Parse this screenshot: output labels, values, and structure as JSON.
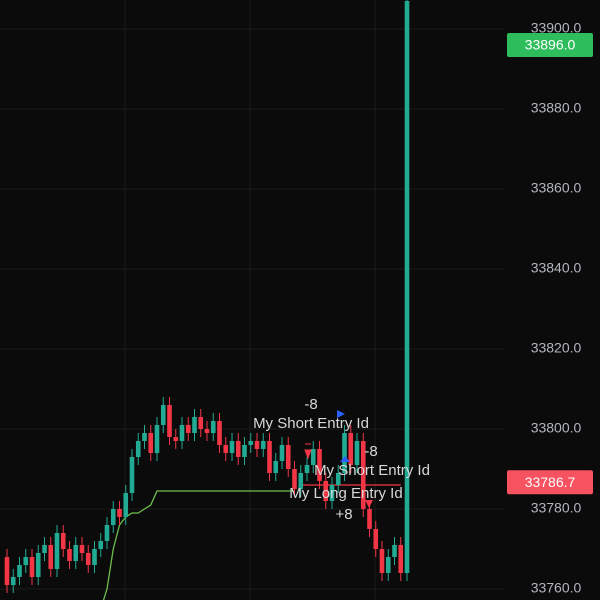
{
  "chart_data": {
    "type": "candlestick",
    "ylim": [
      33757.25,
      33907.25
    ],
    "yticks": [
      {
        "value": 33760,
        "label": "33760.0"
      },
      {
        "value": 33780,
        "label": "33780.0"
      },
      {
        "value": 33800,
        "label": "33800.0"
      },
      {
        "value": 33820,
        "label": "33820.0"
      },
      {
        "value": 33840,
        "label": "33840.0"
      },
      {
        "value": 33860,
        "label": "33860.0"
      },
      {
        "value": 33880,
        "label": "33880.0"
      },
      {
        "value": 33900,
        "label": "33900.0"
      }
    ],
    "up_color": "#22ab94",
    "down_color": "#f23645",
    "open": [
      33768,
      33761,
      33763,
      33766,
      33768,
      33763,
      33769,
      33771,
      33765,
      33774,
      33770,
      33767,
      33771,
      33769,
      33766,
      33770,
      33772,
      33776,
      33780,
      33778,
      33784,
      33793,
      33797,
      33799,
      33794,
      33801,
      33806,
      33798,
      33797,
      33801,
      33799,
      33803,
      33800,
      33799,
      33802,
      33796,
      33794,
      33797,
      33793,
      33796,
      33797,
      33795,
      33797,
      33789,
      33792,
      33796,
      33790,
      33785,
      33789,
      33791,
      33795,
      33787,
      33782,
      33786,
      33789,
      33799,
      33791,
      33797,
      33780,
      33775,
      33770,
      33764,
      33768,
      33771,
      33764
    ],
    "high": [
      33770,
      33765,
      33768,
      33770,
      33770,
      33771,
      33773,
      33773,
      33776,
      33776,
      33772,
      33773,
      33773,
      33771,
      33772,
      33774,
      33778,
      33782,
      33782,
      33786,
      33795,
      33799,
      33801,
      33801,
      33803,
      33808,
      33808,
      33800,
      33803,
      33803,
      33805,
      33805,
      33802,
      33804,
      33804,
      33798,
      33799,
      33799,
      33798,
      33799,
      33799,
      33799,
      33799,
      33794,
      33798,
      33798,
      33792,
      33791,
      33793,
      33797,
      33797,
      33789,
      33788,
      33791,
      33801,
      33801,
      33799,
      33799,
      33782,
      33777,
      33772,
      33770,
      33773,
      33773,
      33912
    ],
    "low": [
      33759,
      33759,
      33761,
      33764,
      33761,
      33761,
      33767,
      33763,
      33763,
      33768,
      33765,
      33765,
      33767,
      33764,
      33764,
      33768,
      33770,
      33774,
      33776,
      33776,
      33782,
      33791,
      33795,
      33792,
      33792,
      33799,
      33796,
      33795,
      33795,
      33797,
      33797,
      33798,
      33797,
      33797,
      33794,
      33792,
      33792,
      33791,
      33791,
      33794,
      33793,
      33793,
      33787,
      33787,
      33790,
      33788,
      33783,
      33783,
      33787,
      33789,
      33785,
      33780,
      33780,
      33784,
      33787,
      33789,
      33789,
      33778,
      33773,
      33768,
      33762,
      33762,
      33766,
      33762,
      33762
    ],
    "close": [
      33761,
      33763,
      33766,
      33768,
      33763,
      33769,
      33771,
      33765,
      33774,
      33770,
      33767,
      33771,
      33769,
      33766,
      33770,
      33772,
      33776,
      33780,
      33778,
      33784,
      33793,
      33797,
      33799,
      33794,
      33801,
      33806,
      33798,
      33797,
      33801,
      33799,
      33803,
      33800,
      33799,
      33802,
      33796,
      33794,
      33797,
      33793,
      33796,
      33797,
      33795,
      33797,
      33789,
      33792,
      33796,
      33790,
      33785,
      33789,
      33791,
      33795,
      33787,
      33782,
      33786,
      33789,
      33799,
      33791,
      33797,
      33780,
      33775,
      33770,
      33764,
      33768,
      33771,
      33764,
      33907
    ],
    "lines": [
      {
        "color": "#6fbf4f",
        "values": [
          33755,
          33755,
          33755,
          33755,
          33755,
          33755,
          33755,
          33755,
          33755,
          33755,
          33755,
          33755,
          33755,
          33755,
          33755,
          33755,
          33760,
          33770,
          33776,
          33778,
          33779,
          33779,
          33780,
          33781,
          33784.5,
          33784.5,
          33784.5,
          33784.5,
          33784.5,
          33784.5,
          33784.5,
          33784.5,
          33784.5,
          33784.5,
          33784.5,
          33784.5,
          33784.5,
          33784.5,
          33784.5,
          33784.5,
          33784.5,
          33784.5,
          33784.5,
          33784.5,
          33784.5,
          33784.5,
          33784.5,
          null,
          null,
          null,
          null,
          null,
          null,
          null,
          null,
          null,
          null,
          null,
          null,
          null,
          null,
          null,
          null,
          null,
          null
        ]
      },
      {
        "color": "#f23645",
        "values": [
          null,
          null,
          null,
          null,
          null,
          null,
          null,
          null,
          null,
          null,
          null,
          null,
          null,
          null,
          null,
          null,
          null,
          null,
          null,
          null,
          null,
          null,
          null,
          null,
          null,
          null,
          null,
          null,
          null,
          null,
          null,
          null,
          null,
          null,
          null,
          null,
          null,
          null,
          null,
          null,
          null,
          null,
          null,
          null,
          null,
          null,
          null,
          33786,
          33786,
          33786,
          33786,
          33786,
          33786,
          33786,
          33786,
          33786,
          33786,
          33786,
          33786,
          33786,
          33786,
          33786,
          33786,
          33786,
          null
        ]
      }
    ],
    "price_tags": [
      {
        "value": 33896,
        "label": "33896.0",
        "color": "#2ebd5c"
      },
      {
        "value": 33786.7,
        "label": "33786.7",
        "color": "#f7525f"
      }
    ],
    "annotations": [
      "-8",
      "My Short Entry Id",
      "-8",
      "My Short Entry Id",
      "My Long Entry Id",
      "+8"
    ]
  }
}
